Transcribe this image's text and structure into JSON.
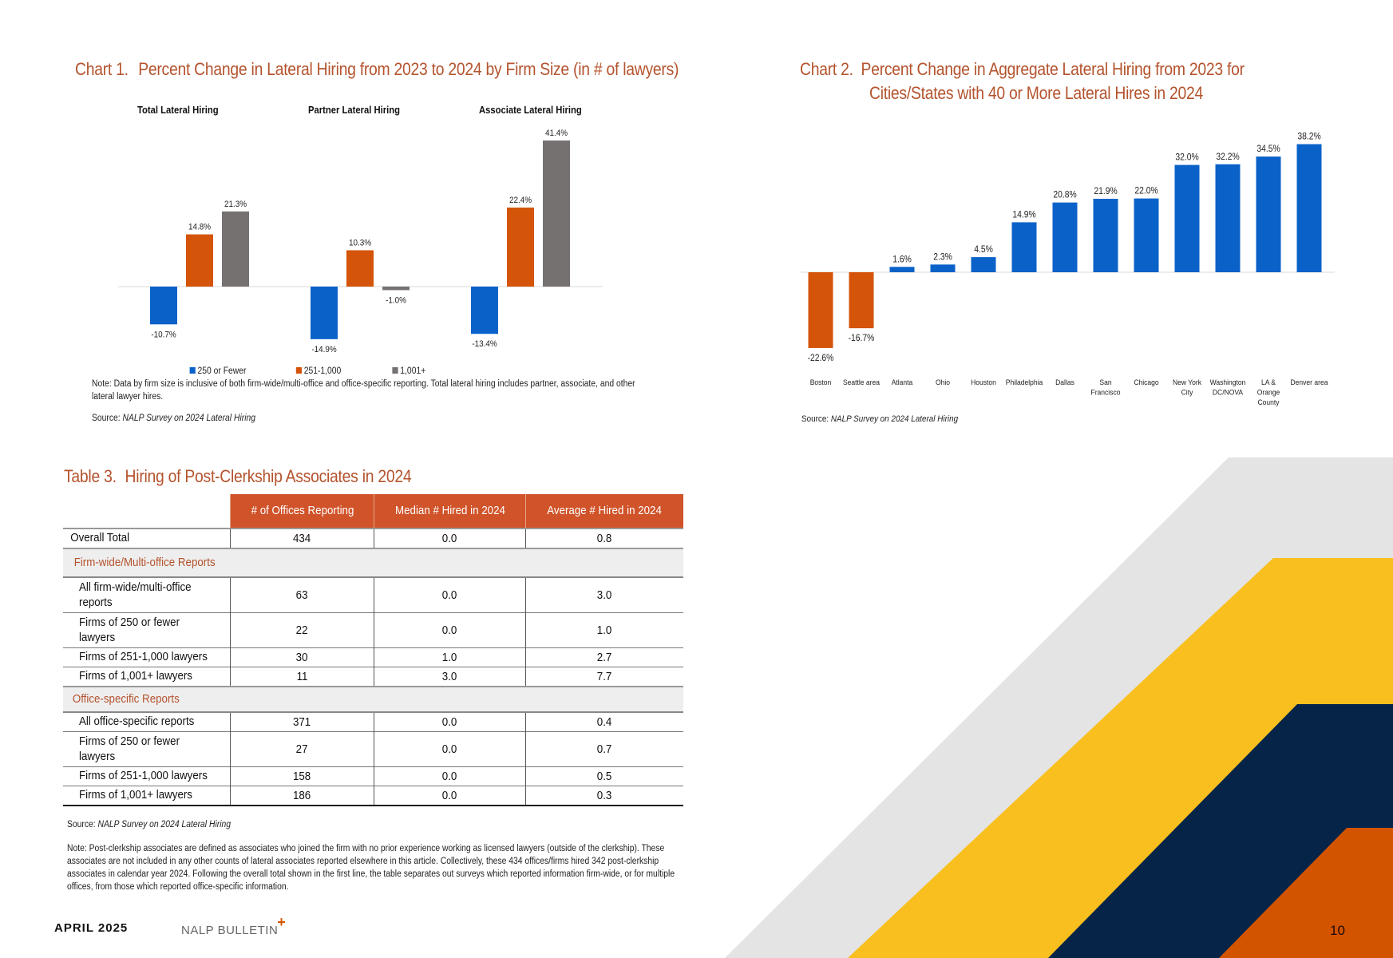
{
  "chart1": {
    "label_num": "Chart 1.",
    "label_text": "Percent Change in Lateral Hiring from 2023 to 2024 by Firm Size (in # of lawyers)",
    "note": "Note: Data by firm size is inclusive of both firm-wide/multi-office and office-specific reporting. Total lateral hiring includes partner, associate, and other lateral lawyer hires.",
    "source_prefix": "Source: ",
    "source_title": "NALP Survey on 2024 Lateral Hiring"
  },
  "chart2": {
    "label_num": "Chart 2.",
    "label_line1": "Percent Change in Aggregate Lateral Hiring from 2023 for",
    "label_line2": "Cities/States with 40 or More Lateral Hires in 2024",
    "source_prefix": "Source: ",
    "source_title": "NALP Survey on 2024 Lateral Hiring"
  },
  "chart_data": [
    {
      "type": "bar",
      "title": "Percent Change in Lateral Hiring from 2023 to 2024 by Firm Size (in # of lawyers)",
      "panels": [
        "Total Lateral Hiring",
        "Partner Lateral Hiring",
        "Associate Lateral Hiring"
      ],
      "categories": [
        "Total Lateral Hiring",
        "Partner Lateral Hiring",
        "Associate Lateral Hiring"
      ],
      "series": [
        {
          "name": "250 or Fewer",
          "color": "#0a62c9",
          "values": [
            -10.7,
            -14.9,
            -13.4
          ]
        },
        {
          "name": "251-1,000",
          "color": "#d4540a",
          "values": [
            14.8,
            10.3,
            22.4
          ]
        },
        {
          "name": "1,001+",
          "color": "#767171",
          "values": [
            21.3,
            -1.0,
            41.4
          ]
        }
      ],
      "value_suffix": "%",
      "xlabel": "",
      "ylabel": "",
      "ylim": [
        -20,
        45
      ],
      "grid": false,
      "legend": "bottom"
    },
    {
      "type": "bar",
      "title": "Percent Change in Aggregate Lateral Hiring from 2023 for Cities/States with 40 or More Lateral Hires in 2024",
      "categories": [
        "Boston",
        "Seattle area",
        "Atlanta",
        "Ohio",
        "Houston",
        "Philadelphia",
        "Dallas",
        "San Francisco",
        "Chicago",
        "New York City",
        "Washington DC/NOVA",
        "LA & Orange County",
        "Denver area"
      ],
      "category_lines": [
        [
          "Boston"
        ],
        [
          "Seattle area"
        ],
        [
          "Atlanta"
        ],
        [
          "Ohio"
        ],
        [
          "Houston"
        ],
        [
          "Philadelphia"
        ],
        [
          "Dallas"
        ],
        [
          "San",
          "Francisco"
        ],
        [
          "Chicago"
        ],
        [
          "New York",
          "City"
        ],
        [
          "Washington",
          "DC/NOVA"
        ],
        [
          "LA &",
          "Orange",
          "County"
        ],
        [
          "Denver area"
        ]
      ],
      "values": [
        -22.6,
        -16.7,
        1.6,
        2.3,
        4.5,
        14.9,
        20.8,
        21.9,
        22.0,
        32.0,
        32.2,
        34.5,
        38.2
      ],
      "positive_color": "#0a62c9",
      "negative_color": "#d4540a",
      "value_suffix": "%",
      "xlabel": "",
      "ylabel": "",
      "ylim": [
        -25,
        40
      ],
      "grid": false
    }
  ],
  "table3": {
    "label_num": "Table 3.",
    "label_text": "Hiring of Post-Clerkship Associates in 2024",
    "columns": [
      "# of Offices Reporting",
      "Median # Hired in 2024",
      "Average # Hired in 2024"
    ],
    "overall": {
      "label": "Overall Total",
      "values": [
        "434",
        "0.0",
        "0.8"
      ]
    },
    "sections": [
      {
        "title": "Firm-wide/Multi-office Reports",
        "rows": [
          {
            "label": "All firm-wide/multi-office reports",
            "values": [
              "63",
              "0.0",
              "3.0"
            ]
          },
          {
            "label": "Firms of 250 or fewer lawyers",
            "values": [
              "22",
              "0.0",
              "1.0"
            ]
          },
          {
            "label": "Firms of 251-1,000 lawyers",
            "values": [
              "30",
              "1.0",
              "2.7"
            ]
          },
          {
            "label": "Firms of 1,001+ lawyers",
            "values": [
              "11",
              "3.0",
              "7.7"
            ]
          }
        ]
      },
      {
        "title": "Office-specific Reports",
        "rows": [
          {
            "label": "All office-specific reports",
            "values": [
              "371",
              "0.0",
              "0.4"
            ]
          },
          {
            "label": "Firms of 250 or fewer lawyers",
            "values": [
              "27",
              "0.0",
              "0.7"
            ]
          },
          {
            "label": "Firms of 251-1,000 lawyers",
            "values": [
              "158",
              "0.0",
              "0.5"
            ]
          },
          {
            "label": "Firms of 1,001+ lawyers",
            "values": [
              "186",
              "0.0",
              "0.3"
            ]
          }
        ]
      }
    ],
    "source_prefix": "Source: ",
    "source_title": "NALP Survey on 2024 Lateral Hiring",
    "note": "Note: Post-clerkship associates are defined as associates who joined the firm with no prior experience working as licensed lawyers (outside of the clerkship). These associates are not included in any other counts of lateral associates reported elsewhere in this article. Collectively, these 434 offices/firms hired 342 post-clerkship associates in calendar year 2024. Following the overall total shown in the first line, the table separates out surveys which reported information firm-wide, or for multiple offices, from those which reported office-specific information."
  },
  "footer": {
    "date": "APRIL 2025",
    "brand": "NALP BULLETIN",
    "brand_mark": "+",
    "page_number": "10"
  },
  "colors": {
    "title": "#b4532d",
    "table_header": "#d0532a",
    "deco_gray": "#e4e4e4",
    "deco_yellow": "#f9bf1e",
    "deco_navy": "#062448",
    "deco_orange": "#d35400"
  }
}
